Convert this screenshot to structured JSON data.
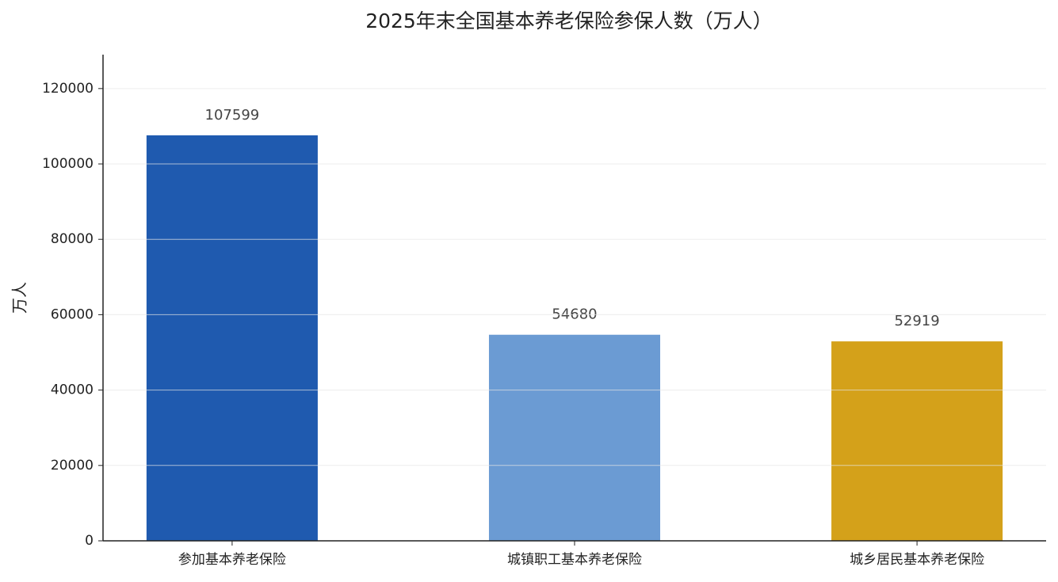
{
  "chart_data": {
    "type": "bar",
    "title": "2025年末全国基本养老保险参保人数（万人）",
    "y_label": "万人",
    "categories": [
      "参加基本养老保险",
      "城镇职工基本养老保险",
      "城乡居民基本养老保险"
    ],
    "values": [
      107599,
      54680,
      52919
    ],
    "colors": [
      "#1f5aaf",
      "#6b9bd3",
      "#d4a11a"
    ],
    "ylim": [
      0,
      129000
    ],
    "yticks": [
      0,
      20000,
      40000,
      60000,
      80000,
      100000,
      120000
    ],
    "grid": true
  }
}
